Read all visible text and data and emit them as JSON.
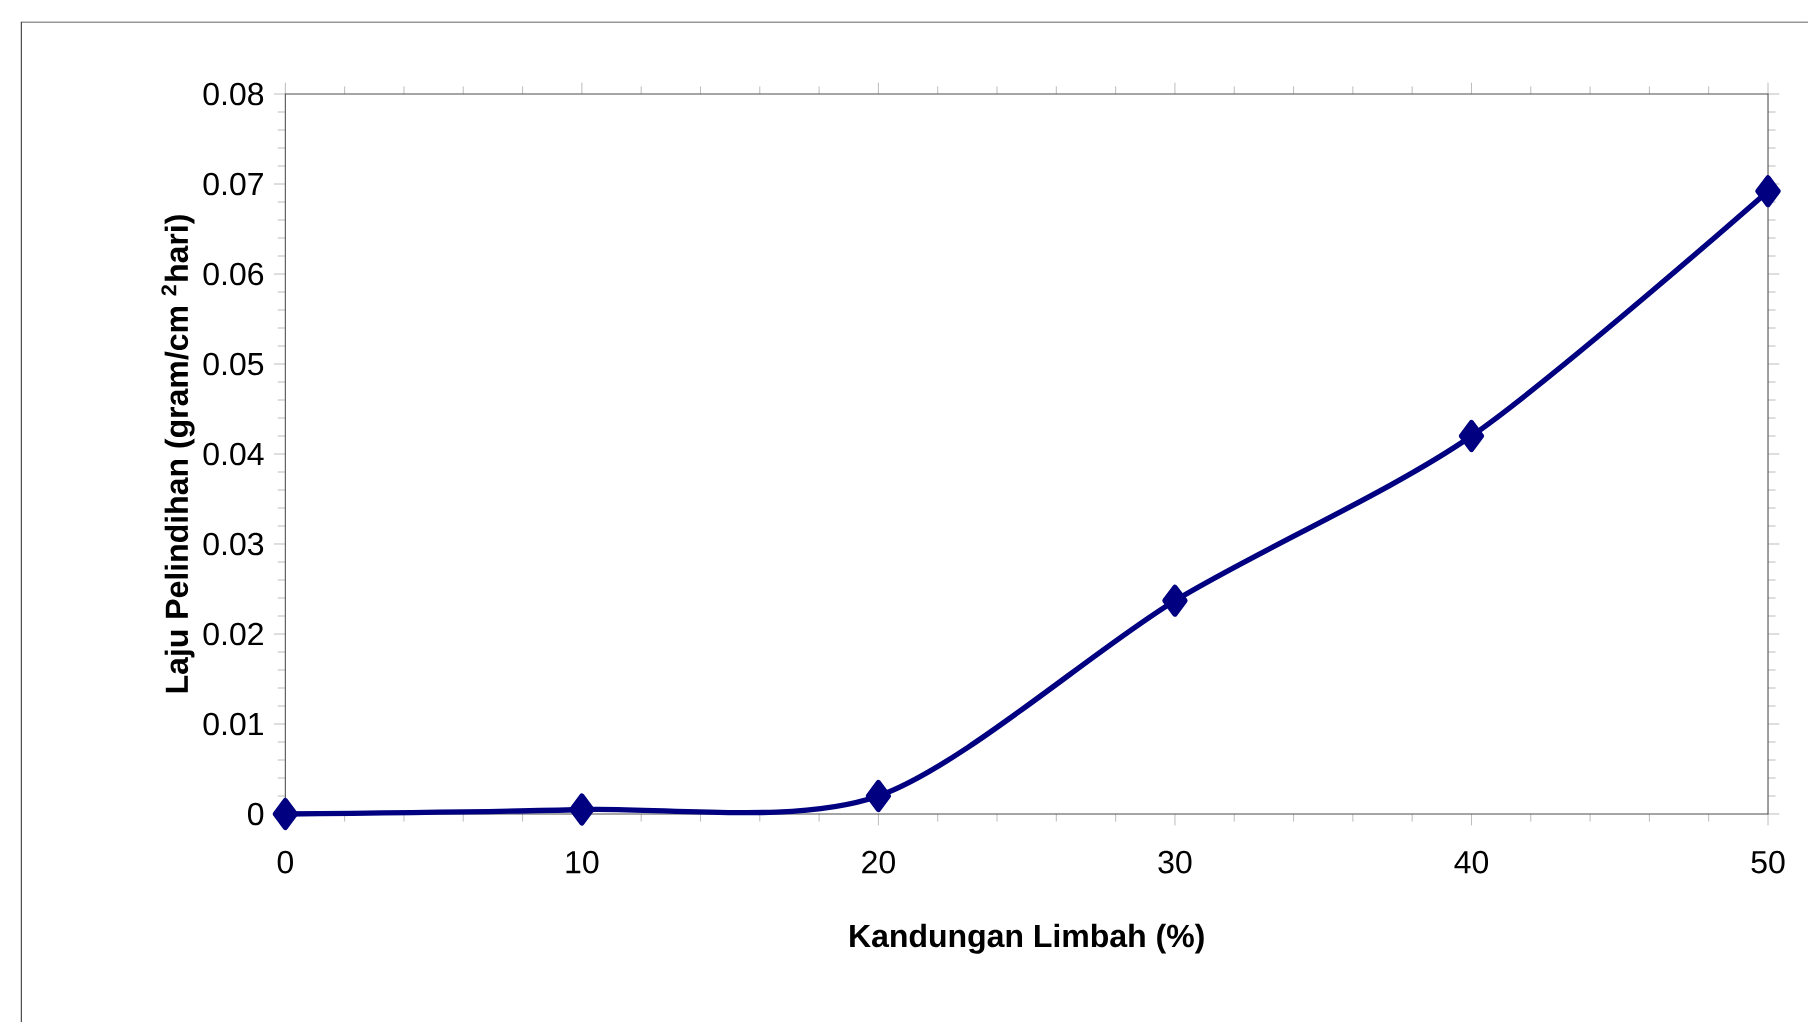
{
  "chart_data": {
    "type": "line",
    "xlabel": "Kandungan Limbah (%)",
    "ylabel": "Laju Pelindihan (gram/cm $^{2}$hari)",
    "x": [
      0,
      10,
      20,
      30,
      40,
      50
    ],
    "series": [
      {
        "color": "#000080",
        "values": [
          0,
          0.0005,
          0.002,
          0.0237,
          0.042,
          0.0692
        ]
      }
    ],
    "xlim": [
      0,
      50
    ],
    "xticks": [
      0,
      10,
      20,
      30,
      40,
      50
    ],
    "ylim": [
      0,
      0.08
    ],
    "yticks": [
      0,
      0.01,
      0.02,
      0.03,
      0.04,
      0.05,
      0.06,
      0.07,
      0.08
    ],
    "marker": "diamond",
    "line_style": "solid"
  }
}
